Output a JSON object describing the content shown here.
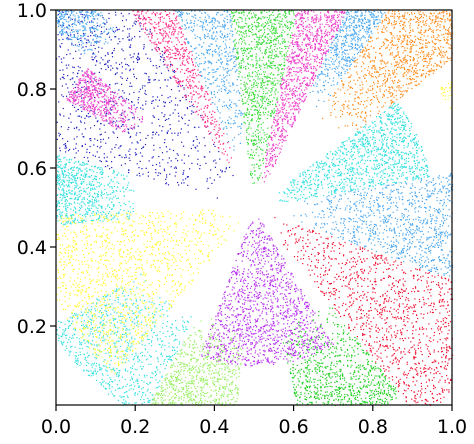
{
  "chart_data": {
    "type": "scatter",
    "title": "",
    "xlabel": "",
    "ylabel": "",
    "xlim": [
      0.0,
      1.0
    ],
    "ylim": [
      0.0,
      1.0
    ],
    "x_ticks": [
      "0.0",
      "0.2",
      "0.4",
      "0.6",
      "0.8",
      "1.0"
    ],
    "y_ticks": [
      "0.2",
      "0.4",
      "0.6",
      "0.8",
      "1.0"
    ],
    "x_tick_values": [
      0.0,
      0.2,
      0.4,
      0.6,
      0.8,
      1.0
    ],
    "y_tick_values": [
      0.2,
      0.4,
      0.6,
      0.8,
      1.0
    ],
    "grid": false,
    "legend": "none",
    "center": [
      0.5,
      0.5
    ],
    "series": [
      {
        "color": "#1f1fbf",
        "angle_range_deg": [
          120,
          165
        ],
        "radius_range": [
          0.08,
          0.75
        ],
        "density": 1.0
      },
      {
        "color": "#ff2a86",
        "angle_range_deg": [
          112,
          122
        ],
        "radius_range": [
          0.1,
          0.7
        ],
        "density": 0.6
      },
      {
        "color": "#4aa8f0",
        "angle_range_deg": [
          97,
          112
        ],
        "radius_range": [
          0.15,
          0.7
        ],
        "density": 0.8
      },
      {
        "color": "#3ddc3d",
        "angle_range_deg": [
          78,
          97
        ],
        "radius_range": [
          0.05,
          0.55
        ],
        "density": 0.9
      },
      {
        "color": "#ee44cc",
        "angle_range_deg": [
          65,
          78
        ],
        "radius_range": [
          0.05,
          0.55
        ],
        "density": 0.8
      },
      {
        "color": "#4aa8f0",
        "angle_range_deg": [
          56,
          65
        ],
        "radius_range": [
          0.3,
          0.7
        ],
        "density": 0.7
      },
      {
        "color": "#ff8c1a",
        "angle_range_deg": [
          37,
          56
        ],
        "radius_range": [
          0.28,
          0.72
        ],
        "density": 1.0
      },
      {
        "color": "#ffff33",
        "angle_range_deg": [
          24,
          33
        ],
        "radius_range": [
          0.55,
          0.72
        ],
        "density": 0.8
      },
      {
        "color": "#33e0e0",
        "angle_range_deg": [
          10,
          37
        ],
        "radius_range": [
          0.05,
          0.45
        ],
        "density": 0.8
      },
      {
        "color": "#4aa8f0",
        "angle_range_deg": [
          -20,
          10
        ],
        "radius_range": [
          0.1,
          0.55
        ],
        "density": 0.8
      },
      {
        "color": "#ee1133",
        "angle_range_deg": [
          -52,
          -20
        ],
        "radius_range": [
          0.05,
          0.68
        ],
        "density": 1.0
      },
      {
        "color": "#22d022",
        "angle_range_deg": [
          -78,
          -52
        ],
        "radius_range": [
          0.3,
          0.6
        ],
        "density": 0.8
      },
      {
        "color": "#b833ee",
        "angle_range_deg": [
          -110,
          -60
        ],
        "radius_range": [
          0.02,
          0.4
        ],
        "density": 1.0
      },
      {
        "color": "#99f066",
        "angle_range_deg": [
          -118,
          -95
        ],
        "radius_range": [
          0.3,
          0.6
        ],
        "density": 0.9
      },
      {
        "color": "#33e0e0",
        "angle_range_deg": [
          -150,
          -118
        ],
        "radius_range": [
          0.3,
          0.6
        ],
        "density": 0.6
      },
      {
        "color": "#ffff33",
        "angle_range_deg": [
          -178,
          -130
        ],
        "radius_range": [
          0.05,
          0.55
        ],
        "density": 1.0
      },
      {
        "color": "#33e0e0",
        "angle_range_deg": [
          165,
          185
        ],
        "radius_range": [
          0.3,
          0.55
        ],
        "density": 0.7
      },
      {
        "color": "#ee44cc",
        "angle_range_deg": [
          140,
          150
        ],
        "radius_range": [
          0.35,
          0.55
        ],
        "density": 0.4
      },
      {
        "color": "#4aa8f0",
        "angle_range_deg": [
          128,
          138
        ],
        "radius_range": [
          0.55,
          0.75
        ],
        "density": 0.5
      }
    ]
  }
}
